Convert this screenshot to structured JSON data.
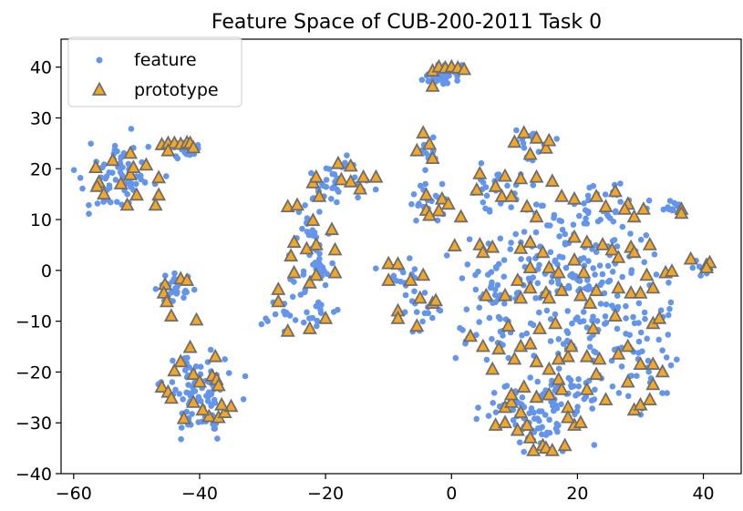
{
  "chart_data": {
    "type": "scatter",
    "title": "Feature Space of CUB-200-2011 Task 0",
    "xlabel": "",
    "ylabel": "",
    "xlim": [
      -62,
      46
    ],
    "ylim": [
      -40,
      45.5
    ],
    "xticks": [
      -60,
      -40,
      -20,
      0,
      20,
      40
    ],
    "yticks": [
      -40,
      -30,
      -20,
      -10,
      0,
      10,
      20,
      30,
      40
    ],
    "xtick_labels": [
      "−60",
      "−40",
      "−20",
      "0",
      "20",
      "40"
    ],
    "ytick_labels": [
      "−40",
      "−30",
      "−20",
      "−10",
      "0",
      "10",
      "20",
      "30",
      "40"
    ],
    "grid": false,
    "legend_position": "top-left",
    "colors": {
      "feature": "#6495ED",
      "prototype_fill": "#F5A623",
      "prototype_edge": "#6E6E6E"
    },
    "series": [
      {
        "name": "feature",
        "marker": "circle",
        "clusters": [
          {
            "cx": -53,
            "cy": 18,
            "sx": 2.6,
            "sy": 2.8,
            "n": 70
          },
          {
            "cx": -43,
            "cy": 24,
            "sx": 1.6,
            "sy": 0.9,
            "n": 22
          },
          {
            "cx": -44,
            "cy": -4,
            "sx": 1.4,
            "sy": 1.6,
            "n": 30
          },
          {
            "cx": -40,
            "cy": -24,
            "sx": 2.6,
            "sy": 4.0,
            "n": 85
          },
          {
            "cx": -19,
            "cy": 17,
            "sx": 2.5,
            "sy": 2.5,
            "n": 40
          },
          {
            "cx": -23,
            "cy": 9,
            "sx": 1.5,
            "sy": 2.0,
            "n": 15
          },
          {
            "cx": -22,
            "cy": 0,
            "sx": 2.5,
            "sy": 2.5,
            "n": 30
          },
          {
            "cx": -26,
            "cy": -8,
            "sx": 1.8,
            "sy": 2.6,
            "n": 15
          },
          {
            "cx": -20,
            "cy": -8,
            "sx": 1.5,
            "sy": 2.0,
            "n": 12
          },
          {
            "cx": -7,
            "cy": -1,
            "sx": 1.8,
            "sy": 1.5,
            "n": 15
          },
          {
            "cx": -5,
            "cy": -8,
            "sx": 1.6,
            "sy": 2.0,
            "n": 15
          },
          {
            "cx": -4,
            "cy": 24,
            "sx": 1.2,
            "sy": 1.4,
            "n": 12
          },
          {
            "cx": -3,
            "cy": 14,
            "sx": 1.6,
            "sy": 2.0,
            "n": 20
          },
          {
            "cx": -1.5,
            "cy": 38.5,
            "sx": 1.4,
            "sy": 1.0,
            "n": 40
          },
          {
            "cx": 13,
            "cy": 25,
            "sx": 1.6,
            "sy": 1.4,
            "n": 15
          },
          {
            "cx": 9,
            "cy": 15,
            "sx": 3.0,
            "sy": 2.5,
            "n": 30
          },
          {
            "cx": 21,
            "cy": 10,
            "sx": 5.0,
            "sy": 4.0,
            "n": 70
          },
          {
            "cx": 18,
            "cy": 0,
            "sx": 6.5,
            "sy": 4.0,
            "n": 90
          },
          {
            "cx": 8,
            "cy": -4,
            "sx": 3.0,
            "sy": 3.5,
            "n": 40
          },
          {
            "cx": 22,
            "cy": -12,
            "sx": 5.0,
            "sy": 4.5,
            "n": 70
          },
          {
            "cx": 13,
            "cy": -28,
            "sx": 3.5,
            "sy": 3.5,
            "n": 85
          },
          {
            "cx": 20,
            "cy": -23,
            "sx": 2.5,
            "sy": 3.5,
            "n": 30
          },
          {
            "cx": 30,
            "cy": -18,
            "sx": 2.5,
            "sy": 5.0,
            "n": 35
          },
          {
            "cx": 7,
            "cy": -15,
            "sx": 2.5,
            "sy": 2.5,
            "n": 20
          },
          {
            "cx": 35.5,
            "cy": 12.5,
            "sx": 0.8,
            "sy": 0.8,
            "n": 8
          },
          {
            "cx": 40,
            "cy": 0.5,
            "sx": 0.8,
            "sy": 0.9,
            "n": 8
          }
        ]
      },
      {
        "name": "prototype",
        "marker": "triangle",
        "points": [
          [
            -56.5,
            20.2
          ],
          [
            -56,
            17.3
          ],
          [
            -56.3,
            16.5
          ],
          [
            -55.2,
            15
          ],
          [
            -53.8,
            21.6
          ],
          [
            -52.5,
            17
          ],
          [
            -51,
            23
          ],
          [
            -51,
            18.8
          ],
          [
            -50.5,
            20.2
          ],
          [
            -50,
            14.8
          ],
          [
            -51.5,
            12.8
          ],
          [
            -48.5,
            20.7
          ],
          [
            -46.5,
            18.2
          ],
          [
            -46.5,
            14.8
          ],
          [
            -47,
            12.8
          ],
          [
            -46,
            24.7
          ],
          [
            -45,
            25
          ],
          [
            -44,
            25
          ],
          [
            -43,
            24.8
          ],
          [
            -42,
            25.1
          ],
          [
            -41.5,
            25
          ],
          [
            -41,
            24.1
          ],
          [
            -45,
            23.5
          ],
          [
            -45.5,
            -2.8
          ],
          [
            -45.7,
            -4.5
          ],
          [
            -45.2,
            -6.2
          ],
          [
            -43,
            -1.7
          ],
          [
            -42,
            -2
          ],
          [
            -44.5,
            -9
          ],
          [
            -40.5,
            -9.8
          ],
          [
            -46,
            -23
          ],
          [
            -45,
            -24
          ],
          [
            -44.5,
            -25.2
          ],
          [
            -44,
            -19.8
          ],
          [
            -43,
            -18
          ],
          [
            -41.5,
            -15.2
          ],
          [
            -41,
            -20.5
          ],
          [
            -42.5,
            -29.2
          ],
          [
            -41,
            -26
          ],
          [
            -40,
            -22
          ],
          [
            -38.5,
            -28.8
          ],
          [
            -38,
            -20.8
          ],
          [
            -37.5,
            -17
          ],
          [
            -37.3,
            -21.5
          ],
          [
            -37,
            -29
          ],
          [
            -36,
            -28
          ],
          [
            -35,
            -26.8
          ],
          [
            -37,
            -22.7
          ],
          [
            -39.5,
            -27.5
          ],
          [
            -36.5,
            -26.5
          ],
          [
            -26,
            12.5
          ],
          [
            -24.5,
            12.8
          ],
          [
            -22,
            17.2
          ],
          [
            -21.5,
            18.3
          ],
          [
            -18,
            21
          ],
          [
            -16,
            20.5
          ],
          [
            -17.5,
            17.8
          ],
          [
            -16,
            17.4
          ],
          [
            -14.5,
            16
          ],
          [
            -14,
            18.3
          ],
          [
            -12,
            18.3
          ],
          [
            -21,
            14.5
          ],
          [
            -22,
            9.8
          ],
          [
            -19,
            8
          ],
          [
            -25,
            5.5
          ],
          [
            -25.5,
            2.8
          ],
          [
            -23,
            4.2
          ],
          [
            -21.5,
            5
          ],
          [
            -18.5,
            4
          ],
          [
            -25,
            -0.5
          ],
          [
            -22.5,
            -2.5
          ],
          [
            -21.5,
            -1
          ],
          [
            -18.5,
            -0.5
          ],
          [
            -27.5,
            -3.8
          ],
          [
            -27.5,
            -6.2
          ],
          [
            -26,
            -12
          ],
          [
            -22.5,
            -11.5
          ],
          [
            -20,
            -9.5
          ],
          [
            -10,
            1.3
          ],
          [
            -8.5,
            1.2
          ],
          [
            -10,
            -2
          ],
          [
            -6.5,
            -2
          ],
          [
            -4.5,
            -1
          ],
          [
            -8.5,
            -8
          ],
          [
            -8.5,
            -9.5
          ],
          [
            -5.5,
            -11
          ],
          [
            -5,
            -5.5
          ],
          [
            -3,
            -6.5
          ],
          [
            -2.5,
            -6
          ],
          [
            -4.5,
            27
          ],
          [
            -5.5,
            23.5
          ],
          [
            -3.5,
            24.8
          ],
          [
            -3,
            22
          ],
          [
            -4,
            14.8
          ],
          [
            -4,
            11.8
          ],
          [
            -3.5,
            10.8
          ],
          [
            -2,
            11.7
          ],
          [
            -1.5,
            14
          ],
          [
            -0.5,
            13
          ],
          [
            1.5,
            10.5
          ],
          [
            0.5,
            4.8
          ],
          [
            -3,
            39.2
          ],
          [
            -2,
            40
          ],
          [
            -1,
            39.8
          ],
          [
            0,
            40
          ],
          [
            1,
            39.8
          ],
          [
            2,
            39.5
          ],
          [
            -3,
            36.2
          ],
          [
            10,
            25.2
          ],
          [
            11.5,
            27
          ],
          [
            13.5,
            26
          ],
          [
            15,
            24
          ],
          [
            15.5,
            25.5
          ],
          [
            12.5,
            22.8
          ],
          [
            4.5,
            19
          ],
          [
            4,
            15.8
          ],
          [
            7,
            16.5
          ],
          [
            8.5,
            18.5
          ],
          [
            11,
            18
          ],
          [
            13.5,
            18.3
          ],
          [
            16,
            17.5
          ],
          [
            8,
            14.5
          ],
          [
            9.5,
            14.5
          ],
          [
            12,
            12.5
          ],
          [
            13.5,
            10.5
          ],
          [
            17.5,
            14.5
          ],
          [
            19.5,
            14
          ],
          [
            23,
            14.5
          ],
          [
            24.5,
            12.5
          ],
          [
            26,
            15.5
          ],
          [
            28,
            13
          ],
          [
            29,
            10.5
          ],
          [
            30.5,
            12
          ],
          [
            27.5,
            12
          ],
          [
            4.5,
            5
          ],
          [
            6.5,
            4.5
          ],
          [
            5,
            3.5
          ],
          [
            11,
            4.3
          ],
          [
            12.5,
            5.5
          ],
          [
            14.5,
            3.5
          ],
          [
            15.5,
            0.5
          ],
          [
            17,
            -0.5
          ],
          [
            19.5,
            6.5
          ],
          [
            21.5,
            5.5
          ],
          [
            19.5,
            2
          ],
          [
            21,
            -0.5
          ],
          [
            24,
            5
          ],
          [
            25.5,
            4
          ],
          [
            26.5,
            2.5
          ],
          [
            28.5,
            4.5
          ],
          [
            29,
            3.5
          ],
          [
            31.5,
            5
          ],
          [
            31,
            -1
          ],
          [
            34,
            -0.5
          ],
          [
            35,
            -0.2
          ],
          [
            12.5,
            0.5
          ],
          [
            10.5,
            -2
          ],
          [
            5.5,
            -5
          ],
          [
            8.5,
            -5
          ],
          [
            11,
            -5.5
          ],
          [
            12.5,
            -3.5
          ],
          [
            15,
            -4.5
          ],
          [
            15.5,
            -5.5
          ],
          [
            17.5,
            -4
          ],
          [
            20.5,
            -5
          ],
          [
            22,
            -6.5
          ],
          [
            23,
            -4
          ],
          [
            26.5,
            -3.5
          ],
          [
            28.5,
            -4.5
          ],
          [
            30,
            -4.5
          ],
          [
            32,
            -3.5
          ],
          [
            26,
            -9
          ],
          [
            22.5,
            -11.5
          ],
          [
            16.5,
            -10.5
          ],
          [
            9,
            -11
          ],
          [
            14,
            -11.5
          ],
          [
            32,
            -10.5
          ],
          [
            33,
            -9.5
          ],
          [
            3,
            -13
          ],
          [
            5,
            -15
          ],
          [
            7.5,
            -15.5
          ],
          [
            10,
            -17.5
          ],
          [
            11,
            -15
          ],
          [
            12.5,
            -14.5
          ],
          [
            13.5,
            -18
          ],
          [
            15.5,
            -19.5
          ],
          [
            17,
            -17.5
          ],
          [
            18.5,
            -17
          ],
          [
            19,
            -15
          ],
          [
            21.5,
            -17
          ],
          [
            23.5,
            -17.5
          ],
          [
            23,
            -20.5
          ],
          [
            26.5,
            -16.5
          ],
          [
            28,
            -15
          ],
          [
            30,
            -18.5
          ],
          [
            32,
            -18.5
          ],
          [
            33.5,
            -20
          ],
          [
            6.5,
            -19.5
          ],
          [
            7,
            -30.5
          ],
          [
            8.5,
            -30
          ],
          [
            8.5,
            -27
          ],
          [
            9.5,
            -26
          ],
          [
            9.5,
            -24.5
          ],
          [
            11,
            -28
          ],
          [
            10.5,
            -31.5
          ],
          [
            12,
            -30.5
          ],
          [
            12.5,
            -33
          ],
          [
            13,
            -35.5
          ],
          [
            14.5,
            -34.5
          ],
          [
            15,
            -35
          ],
          [
            16,
            -35.5
          ],
          [
            13.5,
            -25
          ],
          [
            15.5,
            -24.5
          ],
          [
            17,
            -21.5
          ],
          [
            17.5,
            -23.5
          ],
          [
            18.5,
            -27
          ],
          [
            19.5,
            -30.5
          ],
          [
            20.5,
            -30
          ],
          [
            18,
            -34.5
          ],
          [
            18.5,
            -29
          ],
          [
            24.5,
            -25.5
          ],
          [
            21.5,
            -23.5
          ],
          [
            29,
            -27.5
          ],
          [
            30,
            -26.5
          ],
          [
            31.5,
            -25.5
          ],
          [
            32,
            -22.5
          ],
          [
            28,
            -22
          ],
          [
            11.5,
            -23
          ],
          [
            36.5,
            12
          ],
          [
            36.5,
            11.2
          ],
          [
            38,
            2.2
          ],
          [
            40.5,
            1
          ],
          [
            41,
            1.5
          ],
          [
            40.5,
            0.5
          ]
        ]
      }
    ]
  }
}
